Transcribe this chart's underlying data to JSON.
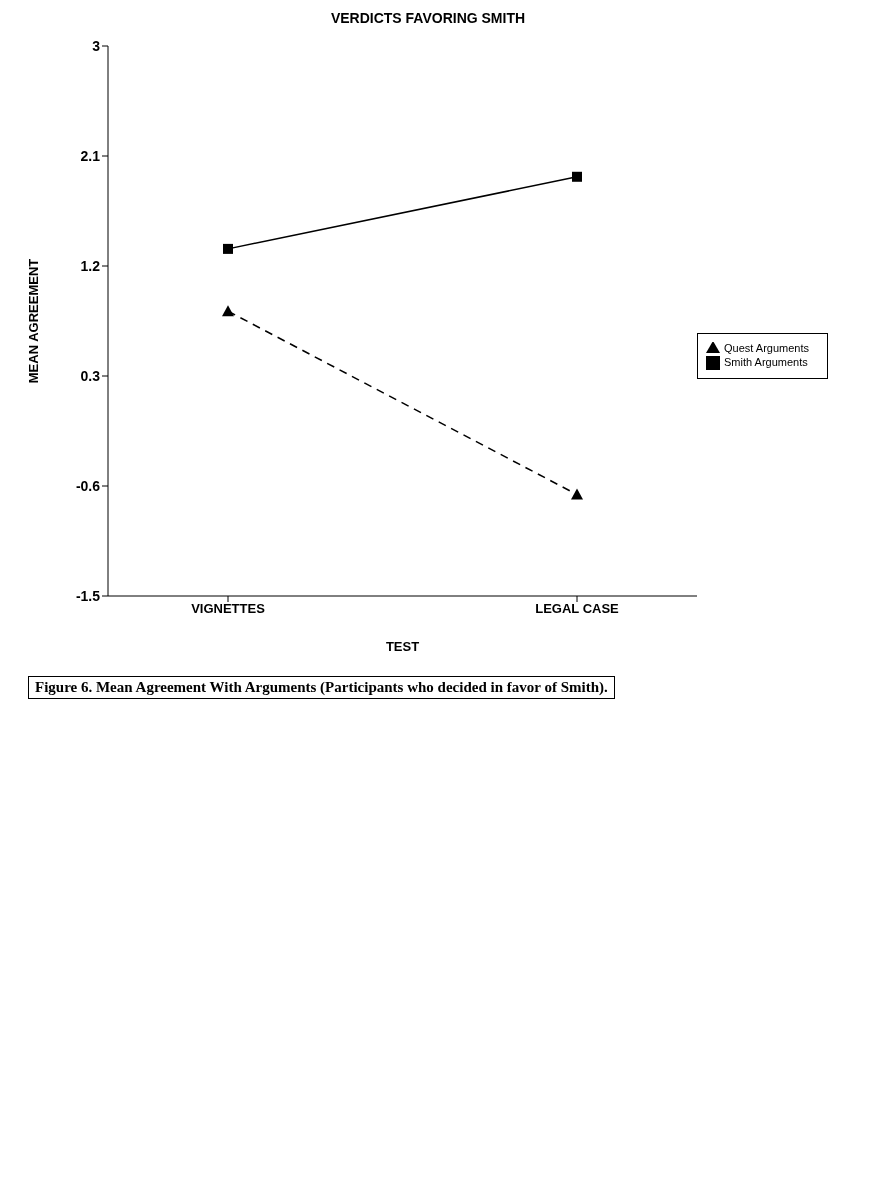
{
  "chart_data": {
    "type": "line",
    "title": "VERDICTS FAVORING SMITH",
    "xlabel": "TEST",
    "ylabel": "MEAN AGREEMENT",
    "categories": [
      "VIGNETTES",
      "LEGAL CASE"
    ],
    "series": [
      {
        "name": "Quest Arguments",
        "color": "#000000",
        "values": [
          0.83,
          -0.67
        ],
        "marker": "triangle",
        "line_style": "dashed"
      },
      {
        "name": "Smith Arguments",
        "color": "#000000",
        "values": [
          1.34,
          1.93
        ],
        "marker": "square",
        "line_style": "solid"
      }
    ],
    "ylim": [
      -1.5,
      3
    ],
    "yticks": [
      -1.5,
      -0.6,
      0.3,
      1.2,
      2.1,
      3
    ],
    "grid": false,
    "legend": "right",
    "annotations": [
      "Figure 6. Mean Agreement With Arguments (Participants who decided in favor of Smith)."
    ]
  }
}
